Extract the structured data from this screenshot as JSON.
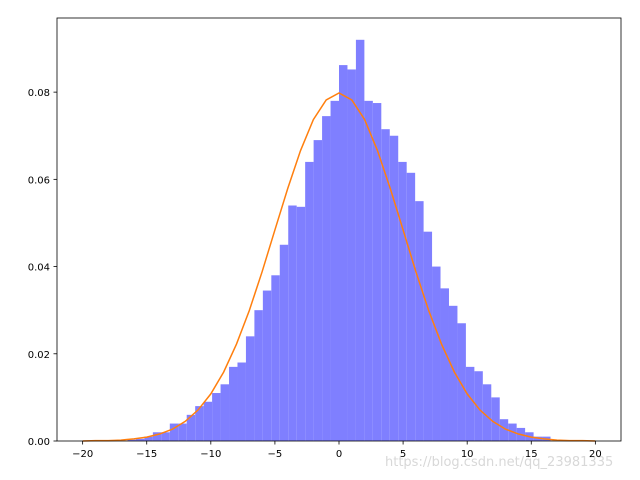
{
  "chart_data": {
    "type": "histogram",
    "bins": [
      -16.5,
      -15.84,
      -15.18,
      -14.52,
      -13.86,
      -13.2,
      -12.54,
      -11.88,
      -11.22,
      -10.56,
      -9.9,
      -9.24,
      -8.58,
      -7.92,
      -7.26,
      -6.6,
      -5.94,
      -5.28,
      -4.62,
      -3.96,
      -3.3,
      -2.64,
      -1.98,
      -1.32,
      -0.66,
      0,
      0.66,
      1.32,
      1.98,
      2.64,
      3.3,
      3.96,
      4.62,
      5.28,
      5.94,
      6.6,
      7.26,
      7.92,
      8.58,
      9.24,
      9.9,
      10.56,
      11.22,
      11.88,
      12.54,
      13.2,
      13.86,
      14.52,
      15.18,
      15.84,
      16.5
    ],
    "values": [
      0.0003,
      0.0005,
      0.001,
      0.002,
      0.002,
      0.004,
      0.004,
      0.006,
      0.008,
      0.009,
      0.011,
      0.013,
      0.017,
      0.018,
      0.024,
      0.03,
      0.0345,
      0.038,
      0.045,
      0.054,
      0.0537,
      0.064,
      0.069,
      0.0745,
      0.078,
      0.0862,
      0.0852,
      0.092,
      0.078,
      0.0775,
      0.0715,
      0.07,
      0.064,
      0.0615,
      0.055,
      0.048,
      0.04,
      0.035,
      0.031,
      0.027,
      0.017,
      0.016,
      0.013,
      0.01,
      0.005,
      0.004,
      0.003,
      0.002,
      0.001,
      0.001
    ],
    "color": "#7f7fff",
    "line": {
      "color": "#ff7f0e",
      "x": [
        -20,
        -19,
        -18,
        -17,
        -16,
        -15,
        -14,
        -13,
        -12,
        -11,
        -10,
        -9,
        -8,
        -7,
        -6,
        -5,
        -4,
        -3,
        -2,
        -1,
        0,
        1,
        2,
        3,
        4,
        5,
        6,
        7,
        8,
        9,
        10,
        11,
        12,
        13,
        14,
        15,
        16,
        17,
        18,
        19,
        20
      ],
      "values": [
        0,
        0.0001,
        0.0001,
        0.0002,
        0.0005,
        0.0009,
        0.0016,
        0.0027,
        0.0045,
        0.0071,
        0.0108,
        0.0158,
        0.0222,
        0.0299,
        0.0388,
        0.0484,
        0.0579,
        0.0666,
        0.0737,
        0.0782,
        0.0798,
        0.0782,
        0.0737,
        0.0666,
        0.0579,
        0.0484,
        0.0388,
        0.0299,
        0.0222,
        0.0158,
        0.0108,
        0.0071,
        0.0045,
        0.0027,
        0.0016,
        0.0009,
        0.0005,
        0.0002,
        0.0001,
        0.0001,
        0
      ]
    },
    "xlim": [
      -22,
      22
    ],
    "ylim": [
      0,
      0.097
    ],
    "xticks": [
      {
        "value": -20,
        "label": "−20"
      },
      {
        "value": -15,
        "label": "−15"
      },
      {
        "value": -10,
        "label": "−10"
      },
      {
        "value": -5,
        "label": "−5"
      },
      0,
      5,
      10,
      15,
      20
    ],
    "yticks": [
      {
        "value": 0,
        "label": "0.00"
      },
      0.02,
      0.04,
      0.06,
      0.08
    ],
    "watermark": "https://blog.csdn.net/qq_23981335"
  }
}
